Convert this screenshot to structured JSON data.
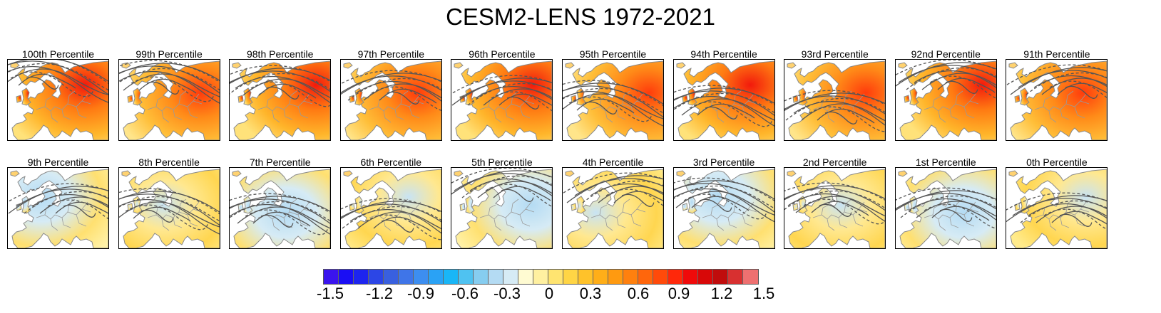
{
  "title": "CESM2-LENS 1972-2021",
  "panels_top": [
    {
      "label": "100th Percentile",
      "theme": "hot"
    },
    {
      "label": "99th Percentile",
      "theme": "hot"
    },
    {
      "label": "98th Percentile",
      "theme": "hot"
    },
    {
      "label": "97th Percentile",
      "theme": "hot"
    },
    {
      "label": "96th Percentile",
      "theme": "hot"
    },
    {
      "label": "95th Percentile",
      "theme": "hot"
    },
    {
      "label": "94th Percentile",
      "theme": "hot"
    },
    {
      "label": "93rd Percentile",
      "theme": "hot"
    },
    {
      "label": "92nd Percentile",
      "theme": "hot"
    },
    {
      "label": "91th Percentile",
      "theme": "hot"
    }
  ],
  "panels_bottom": [
    {
      "label": "9th Percentile",
      "theme": "cool"
    },
    {
      "label": "8th Percentile",
      "theme": "cool"
    },
    {
      "label": "7th Percentile",
      "theme": "cool"
    },
    {
      "label": "6th Percentile",
      "theme": "cool"
    },
    {
      "label": "5th Percentile",
      "theme": "cool"
    },
    {
      "label": "4th Percentile",
      "theme": "cool"
    },
    {
      "label": "3rd Percentile",
      "theme": "cool"
    },
    {
      "label": "2nd Percentile",
      "theme": "cool"
    },
    {
      "label": "1st Percentile",
      "theme": "cool"
    },
    {
      "label": "0th Percentile",
      "theme": "cool"
    }
  ],
  "colorbar": {
    "colors": [
      "#3a14ee",
      "#1a0ef4",
      "#1d24ef",
      "#2c46e6",
      "#3960df",
      "#3f75e8",
      "#3d8ef0",
      "#2aa2f5",
      "#19b6f7",
      "#4fc2f1",
      "#86cdf0",
      "#b4dbf3",
      "#d6ebf5",
      "#fffbd2",
      "#fff0a0",
      "#ffe470",
      "#ffd545",
      "#ffc22a",
      "#ffae18",
      "#ff9a10",
      "#ff800e",
      "#ff660c",
      "#ff4a0a",
      "#ff280a",
      "#f00a0a",
      "#d80808",
      "#c00c0c",
      "#d83030",
      "#ee7070"
    ],
    "labels": [
      "-1.5",
      "-1.2",
      "-0.9",
      "-0.6",
      "-0.3",
      "0",
      "0.3",
      "0.6",
      "0.9",
      "1.2",
      "1.5"
    ]
  }
}
